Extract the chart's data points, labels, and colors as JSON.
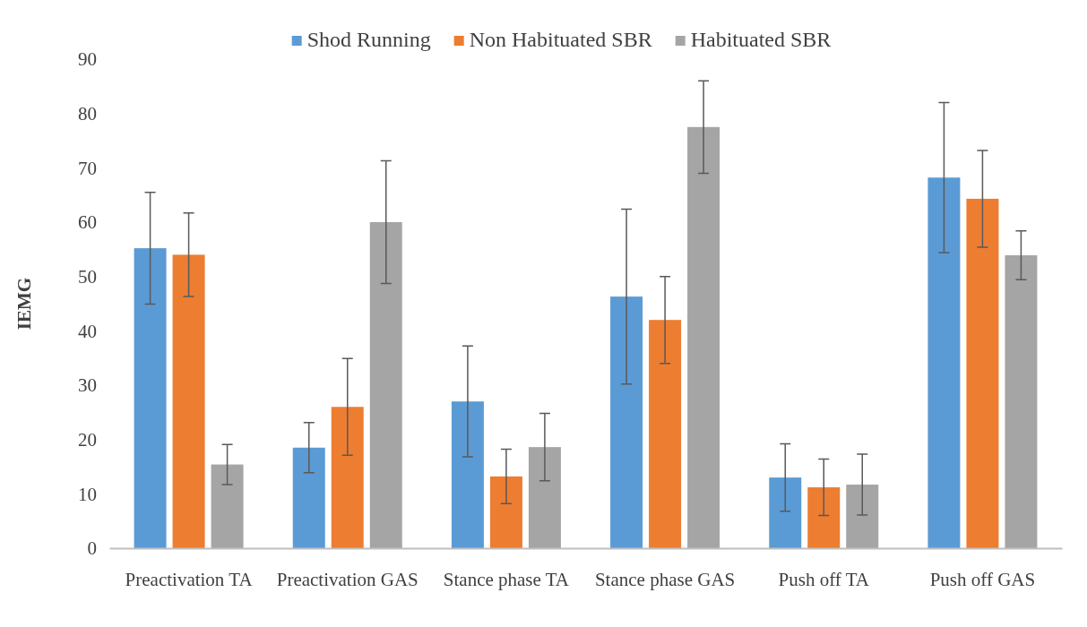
{
  "chart_data": {
    "type": "bar",
    "ylabel": "IEMG",
    "categories": [
      "Preactivation TA",
      "Preactivation GAS",
      "Stance phase TA",
      "Stance phase GAS",
      "Push off  TA",
      "Push off GAS"
    ],
    "series": [
      {
        "name": "Shod Running",
        "color": "#5b9bd5",
        "values": [
          55.2,
          18.5,
          27,
          46.3,
          13,
          68.2
        ],
        "errors": [
          10.3,
          4.6,
          10.2,
          16.1,
          6.2,
          13.8
        ]
      },
      {
        "name": "Non Habituated SBR",
        "color": "#ed7d31",
        "values": [
          54,
          26,
          13.2,
          42,
          11.2,
          64.3
        ],
        "errors": [
          7.7,
          8.9,
          5,
          8,
          5.2,
          8.9
        ]
      },
      {
        "name": "Habituated SBR",
        "color": "#a5a5a5",
        "values": [
          15.4,
          60,
          18.6,
          77.5,
          11.7,
          53.9
        ],
        "errors": [
          3.7,
          11.3,
          6.2,
          8.5,
          5.6,
          4.5
        ]
      }
    ],
    "ylim": [
      0,
      90
    ],
    "yticks": [
      0,
      10,
      20,
      30,
      40,
      50,
      60,
      70,
      80,
      90
    ],
    "legend": "top",
    "grid": false
  }
}
